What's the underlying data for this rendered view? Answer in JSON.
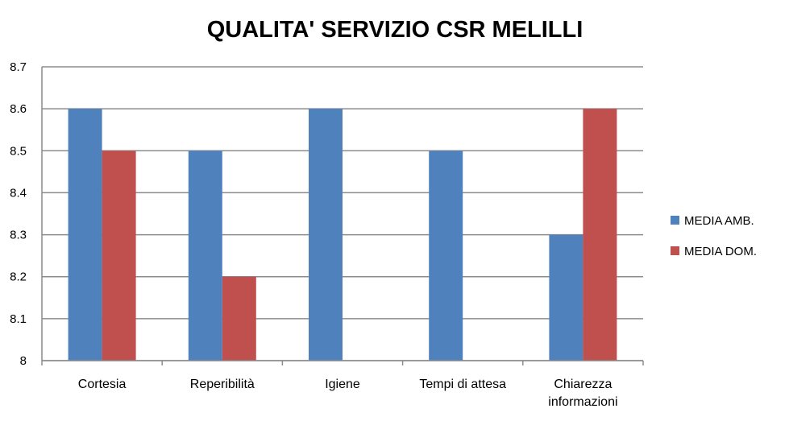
{
  "chart_data": {
    "type": "bar",
    "title": "QUALITA' SERVIZIO CSR MELILLI",
    "xlabel": "",
    "ylabel": "",
    "categories": [
      [
        "Cortesia"
      ],
      [
        "Reperibilità"
      ],
      [
        "Igiene"
      ],
      [
        "Tempi di attesa"
      ],
      [
        "Chiarezza",
        "informazioni"
      ]
    ],
    "series": [
      {
        "name": "MEDIA AMB.",
        "color": "#4F81BD",
        "values": [
          8.6,
          8.5,
          8.6,
          8.5,
          8.3
        ]
      },
      {
        "name": "MEDIA DOM.",
        "color": "#C0504D",
        "values": [
          8.5,
          8.2,
          null,
          null,
          8.6
        ]
      }
    ],
    "ylim": [
      8.0,
      8.7
    ],
    "yticks": [
      "8",
      "8.1",
      "8.2",
      "8.3",
      "8.4",
      "8.5",
      "8.6",
      "8.7"
    ],
    "grid": true,
    "legend_position": "right"
  }
}
